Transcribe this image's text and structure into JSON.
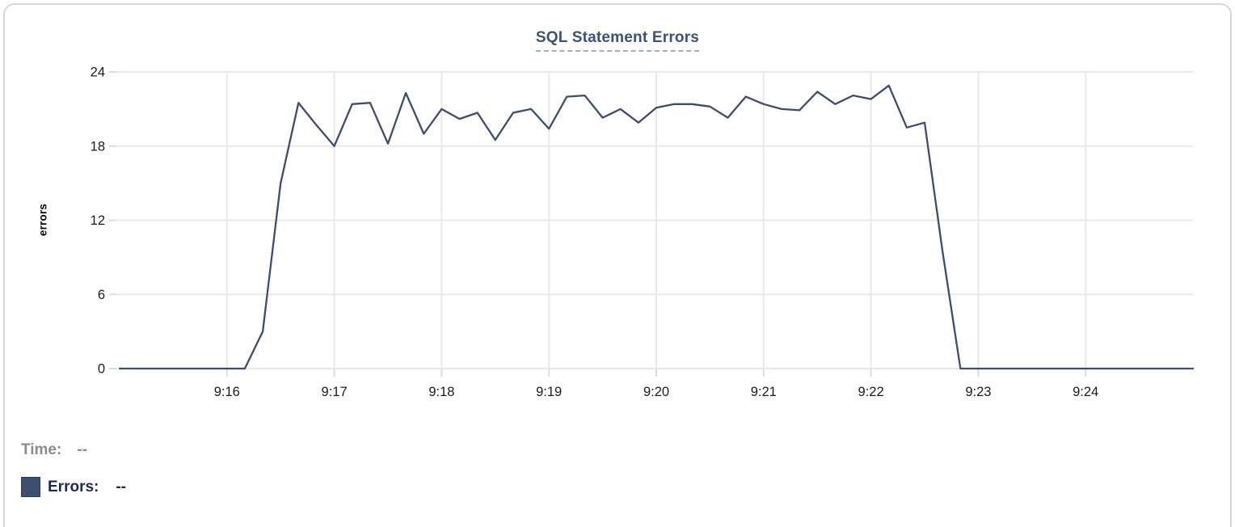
{
  "chart_data": {
    "type": "line",
    "title": "SQL Statement Errors",
    "xlabel": "",
    "ylabel": "errors",
    "ylim": [
      0,
      24
    ],
    "y_ticks": [
      24,
      18,
      12,
      6,
      0
    ],
    "x_ticks": [
      "9:16",
      "9:17",
      "9:18",
      "9:19",
      "9:20",
      "9:21",
      "9:22",
      "9:23",
      "9:24"
    ],
    "x_domain": [
      "9:15:00",
      "9:25:00"
    ],
    "grid": true,
    "legend_position": "bottom-left",
    "series": [
      {
        "name": "Errors",
        "color": "#3d4d6e",
        "start_time": "9:15:00",
        "interval_seconds": 10,
        "values": [
          0,
          0,
          0,
          0,
          0,
          0,
          0,
          0,
          3,
          15,
          21.5,
          19.7,
          18,
          21.4,
          21.5,
          18.2,
          22.3,
          19,
          21,
          20.2,
          20.7,
          18.5,
          20.7,
          21,
          19.4,
          22,
          22.1,
          20.3,
          21,
          19.9,
          21.1,
          21.4,
          21.4,
          21.2,
          20.3,
          22,
          21.4,
          21,
          20.9,
          22.4,
          21.4,
          22.1,
          21.8,
          22.9,
          19.5,
          19.9,
          9.5,
          0,
          0,
          0,
          0,
          0,
          0,
          0,
          0,
          0,
          0,
          0,
          0,
          0,
          0
        ]
      }
    ]
  },
  "tooltip_readout": {
    "time_label": "Time:",
    "time_value": "--",
    "errors_label": "Errors:",
    "errors_value": "--"
  },
  "colors": {
    "line": "#3d4d6e",
    "title": "#3e5277",
    "title_underline": "#a3aec6",
    "gridline": "#e9e9e9",
    "tick_mark": "#dcdcdc",
    "axis_text": "#1b1b1b",
    "time_label": "#8c8c8c",
    "errors_label": "#1b2b52",
    "legend_swatch": "#3e4e6e",
    "card_border": "#d8d8d8"
  }
}
